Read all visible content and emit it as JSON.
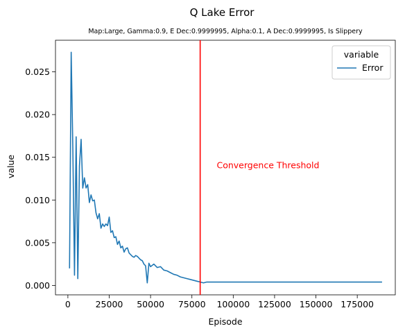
{
  "chart_data": {
    "type": "line",
    "title": "Q Lake Error",
    "subtitle": "Map:Large, Gamma:0.9, E Dec:0.9999995, Alpha:0.1, A Dec:0.9999995, Is Slippery",
    "xlabel": "Episode",
    "ylabel": "value",
    "xlim": [
      -7500,
      198000
    ],
    "ylim": [
      -0.0011,
      0.0287
    ],
    "xticks": [
      0,
      25000,
      50000,
      75000,
      100000,
      125000,
      150000,
      175000
    ],
    "yticks": [
      0.0,
      0.005,
      0.01,
      0.015,
      0.02,
      0.025
    ],
    "ytick_labels": [
      "0.000",
      "0.005",
      "0.010",
      "0.015",
      "0.020",
      "0.025"
    ],
    "grid": false,
    "legend": {
      "title": "variable",
      "position": "top-right"
    },
    "series": [
      {
        "name": "Error",
        "color": "#1f77b4",
        "x": [
          1000,
          2000,
          3000,
          4000,
          5000,
          6000,
          7000,
          8000,
          9000,
          10000,
          11000,
          12000,
          13000,
          14000,
          15000,
          16000,
          17000,
          18000,
          19000,
          20000,
          21000,
          22000,
          23000,
          24000,
          25000,
          26000,
          27000,
          28000,
          29000,
          30000,
          31000,
          32000,
          33000,
          34000,
          35000,
          36000,
          37000,
          38000,
          39000,
          40000,
          41000,
          42000,
          43000,
          44000,
          45000,
          46000,
          47000,
          48000,
          49000,
          50000,
          52000,
          54000,
          56000,
          58000,
          60000,
          62000,
          64000,
          66000,
          68000,
          70000,
          72000,
          74000,
          76000,
          78000,
          80000,
          82000,
          84000,
          86000,
          88000,
          90000,
          95000,
          100000,
          105000,
          110000,
          115000,
          120000,
          125000,
          130000,
          135000,
          140000,
          145000,
          150000,
          155000,
          160000,
          165000,
          170000,
          175000,
          180000,
          185000,
          190000
        ],
        "values": [
          0.002,
          0.0273,
          0.016,
          0.0012,
          0.0174,
          0.0008,
          0.014,
          0.0171,
          0.0114,
          0.0126,
          0.0114,
          0.0118,
          0.0097,
          0.0106,
          0.0099,
          0.01,
          0.0085,
          0.0078,
          0.0084,
          0.0067,
          0.0072,
          0.0069,
          0.0072,
          0.007,
          0.008,
          0.0062,
          0.0064,
          0.0056,
          0.0057,
          0.0048,
          0.0052,
          0.0044,
          0.0046,
          0.0039,
          0.0043,
          0.0044,
          0.0038,
          0.0036,
          0.0034,
          0.0033,
          0.0035,
          0.0034,
          0.0032,
          0.003,
          0.0029,
          0.0025,
          0.0023,
          0.0003,
          0.0026,
          0.0022,
          0.0025,
          0.0021,
          0.0022,
          0.0018,
          0.0017,
          0.0015,
          0.0013,
          0.0012,
          0.001,
          0.0009,
          0.0008,
          0.0007,
          0.0006,
          0.0005,
          0.0004,
          0.0003,
          0.0004,
          0.0004,
          0.0004,
          0.0004,
          0.0004,
          0.0004,
          0.0004,
          0.0004,
          0.0004,
          0.0004,
          0.0004,
          0.0004,
          0.0004,
          0.0004,
          0.0004,
          0.0004,
          0.0004,
          0.0004,
          0.0004,
          0.0004,
          0.0004,
          0.0004,
          0.0004,
          0.0004
        ]
      }
    ],
    "annotations": [
      {
        "type": "vline",
        "x": 80000,
        "color": "#ff0000"
      },
      {
        "type": "text",
        "text": "Convergence Threshold",
        "x": 90000,
        "y": 0.0137,
        "color": "#ff0000"
      }
    ]
  }
}
